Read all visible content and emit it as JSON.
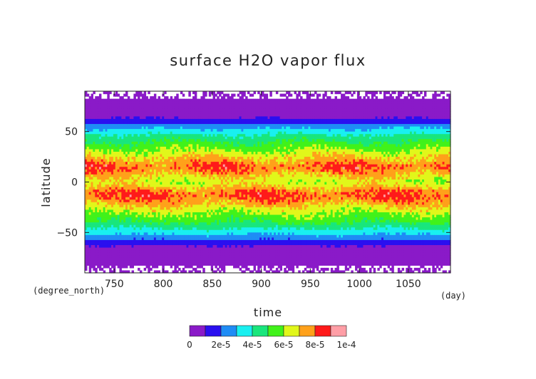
{
  "chart_data": {
    "type": "heatmap",
    "title": "surface H2O vapor flux",
    "xlabel": "time",
    "ylabel": "latitude",
    "x_unit": "(day)",
    "y_unit": "(degree_north)",
    "xlim": [
      720,
      1093
    ],
    "ylim": [
      -90,
      90
    ],
    "x_ticks": [
      750,
      800,
      850,
      900,
      950,
      1000,
      1050
    ],
    "y_ticks": [
      50,
      0,
      -50
    ],
    "y_tick_labels": [
      "50",
      "0",
      "−50"
    ],
    "levels": [
      0,
      1e-05,
      2e-05,
      3e-05,
      4e-05,
      5e-05,
      6e-05,
      7e-05,
      8e-05,
      9e-05,
      0.0001
    ],
    "colorbar_labels": [
      "0",
      "2e-5",
      "4e-5",
      "6e-5",
      "8e-5",
      "1e-4"
    ],
    "colors": [
      "#8a1ac8",
      "#2a0ff0",
      "#1f8cf5",
      "#19f0f0",
      "#19e67d",
      "#41f21a",
      "#e1f71a",
      "#ffa11a",
      "#ff1a1a",
      "#ff9ea6"
    ],
    "latitude_profile": {
      "lat": [
        -90,
        -85,
        -80,
        -75,
        -70,
        -65,
        -60,
        -55,
        -50,
        -45,
        -40,
        -35,
        -30,
        -25,
        -20,
        -15,
        -10,
        -5,
        0,
        5,
        10,
        15,
        20,
        25,
        30,
        35,
        40,
        45,
        50,
        55,
        60,
        65,
        70,
        75,
        80,
        85,
        90
      ],
      "value": [
        3e-06,
        4e-06,
        5e-06,
        6e-06,
        7e-06,
        8e-06,
        1.4e-05,
        2.5e-05,
        3.4e-05,
        4.2e-05,
        5e-05,
        5.6e-05,
        6.1e-05,
        6.8e-05,
        7.4e-05,
        8.1e-05,
        8e-05,
        7e-05,
        6.3e-05,
        6.8e-05,
        7.6e-05,
        8.2e-05,
        7.5e-05,
        6.9e-05,
        6.2e-05,
        5.6e-05,
        5e-05,
        4.3e-05,
        3.5e-05,
        2.6e-05,
        1.4e-05,
        8e-06,
        7e-06,
        6e-06,
        5e-06,
        4e-06,
        3e-06
      ]
    }
  }
}
